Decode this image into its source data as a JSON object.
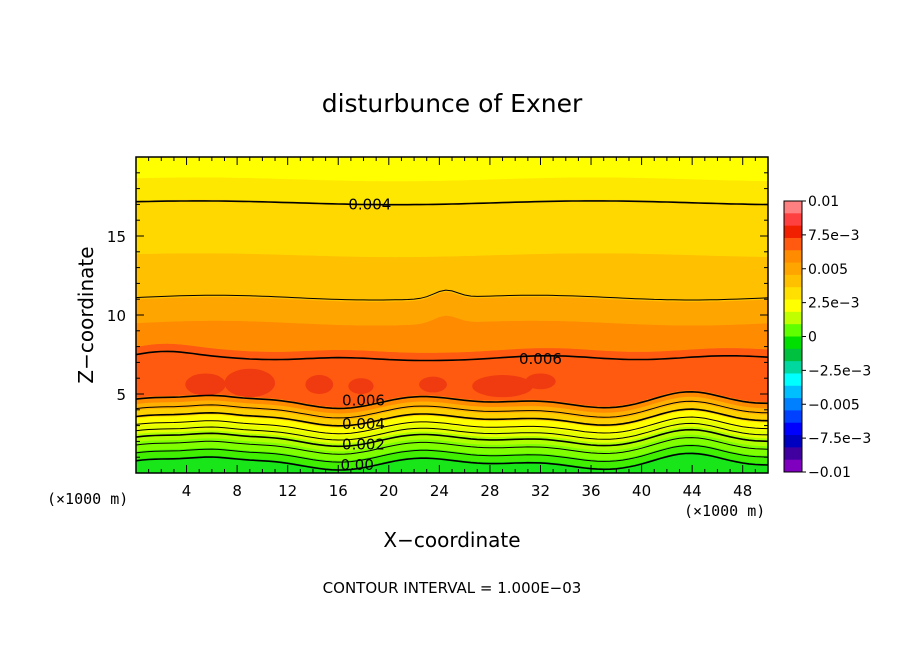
{
  "chart_data": {
    "type": "contour",
    "title": "disturbunce of Exner",
    "xlabel": "X−coordinate",
    "ylabel": "Z−coordinate",
    "x_unit": "(×1000 m)",
    "x_unit_right": "(×1000 m)",
    "xlim": [
      0,
      50
    ],
    "ylim": [
      0,
      20
    ],
    "x_ticks": [
      4,
      8,
      12,
      16,
      20,
      24,
      28,
      32,
      36,
      40,
      44,
      48
    ],
    "y_ticks": [
      5,
      10,
      15
    ],
    "footer": "CONTOUR INTERVAL = 1.000E−03",
    "contour_interval": 0.001,
    "contour_labels": [
      {
        "text": "0.004",
        "x": 18.5,
        "z": 17.0
      },
      {
        "text": "0.006",
        "x": 32.0,
        "z": 7.2
      },
      {
        "text": "0.006",
        "x": 18.0,
        "z": 4.6
      },
      {
        "text": "0.004",
        "x": 18.0,
        "z": 3.1
      },
      {
        "text": "0.002",
        "x": 18.0,
        "z": 1.8
      },
      {
        "text": "0.00",
        "x": 17.5,
        "z": 0.5
      }
    ],
    "colorbar": {
      "ticks": [
        "0.01",
        "7.5e−3",
        "0.005",
        "2.5e−3",
        "0",
        "−2.5e−3",
        "−0.005",
        "−7.5e−3",
        "−0.01"
      ],
      "colors": [
        "#ff8080",
        "#ff4040",
        "#f02000",
        "#ff5a10",
        "#ff8c00",
        "#ffa500",
        "#ffc000",
        "#ffe000",
        "#ffff00",
        "#bfff00",
        "#60ff00",
        "#00e000",
        "#00c040",
        "#00d8a0",
        "#00ffff",
        "#00bfff",
        "#0080ff",
        "#0040ff",
        "#0000ff",
        "#0000c0",
        "#4000a0",
        "#8000c0"
      ]
    },
    "bands": [
      {
        "from": 0.0,
        "to": 0.7,
        "value": -0.0002,
        "color": "#19e619"
      },
      {
        "from": 0.7,
        "to": 1.2,
        "value": 0.0006,
        "color": "#40f000"
      },
      {
        "from": 1.2,
        "to": 1.8,
        "value": 0.0014,
        "color": "#80ff00"
      },
      {
        "from": 1.8,
        "to": 2.3,
        "value": 0.0022,
        "color": "#b0ff00"
      },
      {
        "from": 2.3,
        "to": 2.8,
        "value": 0.003,
        "color": "#e6ff00"
      },
      {
        "from": 2.8,
        "to": 3.3,
        "value": 0.0038,
        "color": "#ffff00"
      },
      {
        "from": 3.3,
        "to": 3.8,
        "value": 0.0046,
        "color": "#ffd000"
      },
      {
        "from": 3.8,
        "to": 4.2,
        "value": 0.0052,
        "color": "#ffb000"
      },
      {
        "from": 4.2,
        "to": 4.6,
        "value": 0.0058,
        "color": "#ff8c00"
      },
      {
        "from": 4.6,
        "to": 7.8,
        "value": 0.0066,
        "color": "#ff5a10"
      },
      {
        "from": 7.8,
        "to": 9.5,
        "value": 0.0058,
        "color": "#ff8c00"
      },
      {
        "from": 9.5,
        "to": 11.0,
        "value": 0.0052,
        "color": "#ffa500"
      },
      {
        "from": 11.0,
        "to": 13.8,
        "value": 0.0046,
        "color": "#ffc000"
      },
      {
        "from": 13.8,
        "to": 17.2,
        "value": 0.0042,
        "color": "#ffd800"
      },
      {
        "from": 17.2,
        "to": 18.6,
        "value": 0.0036,
        "color": "#ffe800"
      },
      {
        "from": 18.6,
        "to": 20.0,
        "value": 0.003,
        "color": "#ffff00"
      }
    ],
    "contours": [
      17.1,
      11.1,
      7.3,
      4.5,
      3.9,
      3.4,
      2.9,
      2.5,
      2.1,
      1.6,
      1.1,
      0.6
    ]
  }
}
